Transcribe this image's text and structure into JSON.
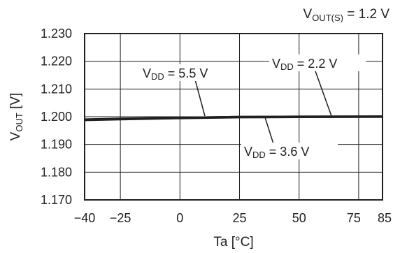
{
  "chart_data": {
    "type": "line",
    "title": {
      "main": "V",
      "sub": "OUT(S)",
      "value": " = 1.2 V"
    },
    "xlabel": "Ta [°C]",
    "ylabel": {
      "main": "V",
      "sub": "OUT",
      "unit": " [V]"
    },
    "xlim": [
      -40,
      85
    ],
    "ylim": [
      1.17,
      1.23
    ],
    "x_ticks": [
      -40,
      -25,
      0,
      25,
      50,
      75,
      85
    ],
    "x_tick_labels": [
      "−40",
      "−25",
      "0",
      "25",
      "50",
      "75",
      "85"
    ],
    "y_ticks": [
      1.17,
      1.18,
      1.19,
      1.2,
      1.21,
      1.22,
      1.23
    ],
    "y_tick_labels": [
      "1.170",
      "1.180",
      "1.190",
      "1.200",
      "1.210",
      "1.220",
      "1.230"
    ],
    "grid": true,
    "series": [
      {
        "name": "VDD = 5.5 V",
        "label": {
          "main": "V",
          "sub": "DD",
          "value": " = 5.5 V"
        },
        "x": [
          -40,
          -25,
          0,
          25,
          50,
          85
        ],
        "y": [
          1.1988,
          1.1991,
          1.1995,
          1.1998,
          1.1999,
          1.2
        ]
      },
      {
        "name": "VDD = 3.6 V",
        "label": {
          "main": "V",
          "sub": "DD",
          "value": " = 3.6 V"
        },
        "x": [
          -40,
          -25,
          0,
          25,
          50,
          85
        ],
        "y": [
          1.1989,
          1.1992,
          1.1996,
          1.1999,
          1.2,
          1.2
        ]
      },
      {
        "name": "VDD = 2.2 V",
        "label": {
          "main": "V",
          "sub": "DD",
          "value": " = 2.2 V"
        },
        "x": [
          -40,
          -25,
          0,
          25,
          50,
          85
        ],
        "y": [
          1.199,
          1.1993,
          1.1996,
          1.1999,
          1.2,
          1.2001
        ]
      }
    ]
  },
  "colors": {
    "ink": "#231f20",
    "background": "#ffffff"
  }
}
